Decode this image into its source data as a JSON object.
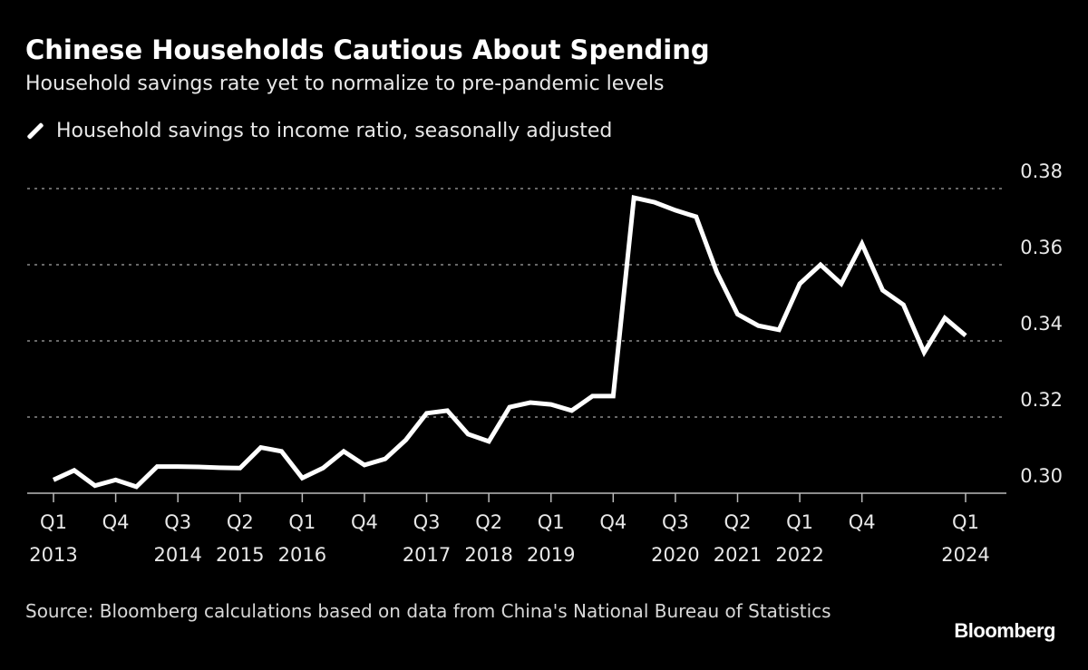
{
  "chart_data": {
    "type": "line",
    "title": "Chinese Households Cautious About Spending",
    "subtitle": "Household savings rate yet to normalize to pre-pandemic levels",
    "xlabel": "",
    "ylabel": "",
    "ylim": [
      0.3,
      0.38
    ],
    "yticks": [
      "0.30",
      "0.32",
      "0.34",
      "0.36",
      "0.38"
    ],
    "grid": true,
    "legend_position": "top-left",
    "line_color": "#ffffff",
    "background": "#000000",
    "x": [
      "Q1 2013",
      "Q2 2013",
      "Q3 2013",
      "Q4 2013",
      "Q1 2014",
      "Q2 2014",
      "Q3 2014",
      "Q4 2014",
      "Q1 2015",
      "Q2 2015",
      "Q3 2015",
      "Q4 2015",
      "Q1 2016",
      "Q2 2016",
      "Q3 2016",
      "Q4 2016",
      "Q1 2017",
      "Q2 2017",
      "Q3 2017",
      "Q4 2017",
      "Q1 2018",
      "Q2 2018",
      "Q3 2018",
      "Q4 2018",
      "Q1 2019",
      "Q2 2019",
      "Q3 2019",
      "Q4 2019",
      "Q1 2020",
      "Q2 2020",
      "Q3 2020",
      "Q4 2020",
      "Q1 2021",
      "Q2 2021",
      "Q3 2021",
      "Q4 2021",
      "Q1 2022",
      "Q2 2022",
      "Q3 2022",
      "Q4 2022",
      "Q1 2023",
      "Q2 2023",
      "Q3 2023",
      "Q4 2023",
      "Q1 2024"
    ],
    "series": [
      {
        "name": "Household savings to income ratio, seasonally adjusted",
        "values": [
          0.3035,
          0.306,
          0.302,
          0.3035,
          0.3017,
          0.307,
          0.307,
          0.3069,
          0.3067,
          0.3066,
          0.312,
          0.311,
          0.304,
          0.3066,
          0.311,
          0.3074,
          0.309,
          0.314,
          0.321,
          0.3217,
          0.3155,
          0.3136,
          0.3226,
          0.3238,
          0.3233,
          0.3217,
          0.3255,
          0.3255,
          0.3776,
          0.3764,
          0.3743,
          0.3726,
          0.358,
          0.347,
          0.344,
          0.3429,
          0.355,
          0.36,
          0.355,
          0.3655,
          0.3533,
          0.3495,
          0.337,
          0.346,
          0.3414
        ]
      }
    ],
    "xtick_labels": [
      {
        "index": 0,
        "q": "Q1",
        "year": "2013"
      },
      {
        "index": 3,
        "q": "Q4",
        "year": ""
      },
      {
        "index": 6,
        "q": "Q3",
        "year": "2014"
      },
      {
        "index": 9,
        "q": "Q2",
        "year": "2015"
      },
      {
        "index": 12,
        "q": "Q1",
        "year": "2016"
      },
      {
        "index": 15,
        "q": "Q4",
        "year": ""
      },
      {
        "index": 18,
        "q": "Q3",
        "year": "2017"
      },
      {
        "index": 21,
        "q": "Q2",
        "year": "2018"
      },
      {
        "index": 24,
        "q": "Q1",
        "year": "2019"
      },
      {
        "index": 27,
        "q": "Q4",
        "year": ""
      },
      {
        "index": 30,
        "q": "Q3",
        "year": "2020"
      },
      {
        "index": 33,
        "q": "Q2",
        "year": "2021"
      },
      {
        "index": 36,
        "q": "Q1",
        "year": "2022"
      },
      {
        "index": 39,
        "q": "Q4",
        "year": ""
      },
      {
        "index": 44,
        "q": "Q1",
        "year": "2024"
      }
    ]
  },
  "source": "Source: Bloomberg calculations based on data from China's National Bureau of Statistics",
  "logo": "Bloomberg"
}
